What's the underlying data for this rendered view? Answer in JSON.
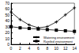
{
  "chart_data": {
    "type": "line",
    "x": [
      0,
      2,
      4,
      6,
      8,
      10,
      12,
      14
    ],
    "series": [
      {
        "name": "Watering environment",
        "color": "#000000",
        "marker": "plus",
        "line_style": "solid",
        "values": [
          55,
          42,
          33,
          28,
          30,
          38,
          50,
          62
        ]
      },
      {
        "name": "Rainfed environment",
        "color": "#000000",
        "marker": "square",
        "line_style": "solid",
        "values": [
          30,
          28,
          27,
          26,
          25,
          24,
          23,
          22
        ]
      }
    ],
    "xlim": [
      0,
      14
    ],
    "xticks": [
      0,
      2,
      4,
      6,
      8,
      10,
      12,
      14
    ],
    "ylim": [
      0,
      70
    ],
    "yticks": [
      0,
      10,
      20,
      30,
      40,
      50,
      60,
      70
    ],
    "grid": false,
    "legend": "bottom-right"
  }
}
